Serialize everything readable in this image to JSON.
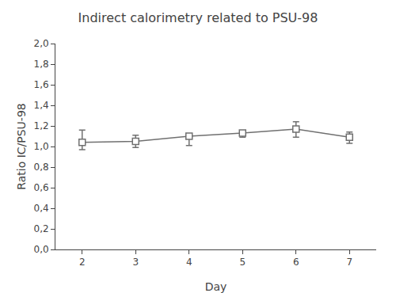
{
  "chart_data": {
    "type": "line",
    "title": "Indirect calorimetry related to PSU-98",
    "xlabel": "Day",
    "ylabel": "Ratio IC/PSU-98",
    "x": [
      2,
      3,
      4,
      5,
      6,
      7
    ],
    "values": [
      1.04,
      1.05,
      1.1,
      1.13,
      1.17,
      1.09
    ],
    "error_lower": [
      0.07,
      0.06,
      0.09,
      0.04,
      0.08,
      0.06
    ],
    "error_upper": [
      0.12,
      0.06,
      0.01,
      0.02,
      0.07,
      0.05
    ],
    "color": "#707070",
    "marker": "square",
    "line_style": "solid",
    "xlim": [
      1.5,
      7.5
    ],
    "ylim": [
      0.0,
      2.0
    ],
    "xticks": [
      2,
      3,
      4,
      5,
      6,
      7
    ],
    "yticks": [
      {
        "value": 0.0,
        "label": "0,0"
      },
      {
        "value": 0.2,
        "label": "0,2"
      },
      {
        "value": 0.4,
        "label": "0,4"
      },
      {
        "value": 0.6,
        "label": "0,6"
      },
      {
        "value": 0.8,
        "label": "0,8"
      },
      {
        "value": 1.0,
        "label": "1,0"
      },
      {
        "value": 1.2,
        "label": "1,2"
      },
      {
        "value": 1.4,
        "label": "1,4"
      },
      {
        "value": 1.6,
        "label": "1,6"
      },
      {
        "value": 1.8,
        "label": "1,8"
      },
      {
        "value": 2.0,
        "label": "2,0"
      }
    ],
    "grid": false
  }
}
